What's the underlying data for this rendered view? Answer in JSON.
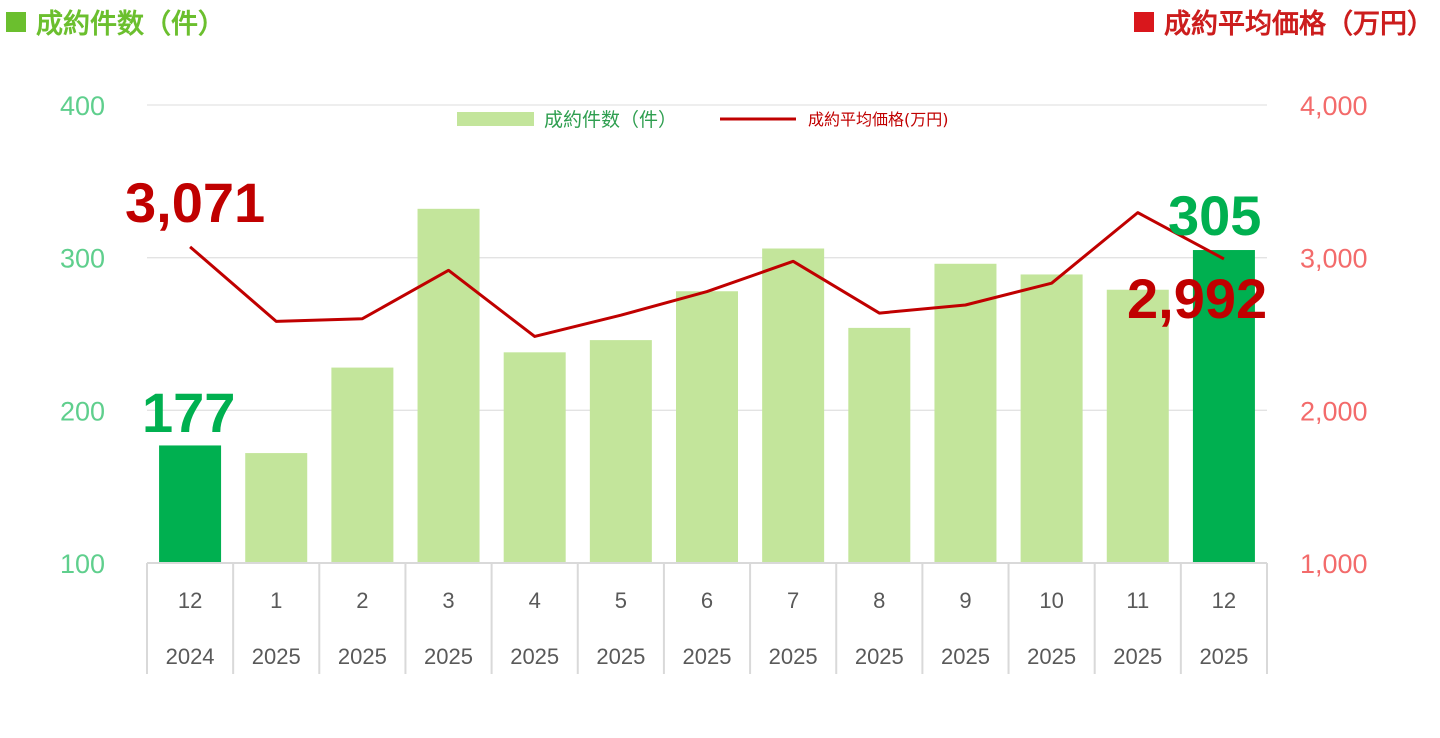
{
  "header": {
    "left_title": "成約件数（件）",
    "right_title": "成約平均価格（万円）"
  },
  "colors": {
    "bar": "#c3e59b",
    "bar_highlight": "#00b050",
    "line": "#c00000",
    "left_axis": "#5fcf8d",
    "right_axis": "#f36b6b"
  },
  "chart_data": {
    "type": "bar",
    "categories": [
      {
        "month": "12",
        "year": "2024"
      },
      {
        "month": "1",
        "year": "2025"
      },
      {
        "month": "2",
        "year": "2025"
      },
      {
        "month": "3",
        "year": "2025"
      },
      {
        "month": "4",
        "year": "2025"
      },
      {
        "month": "5",
        "year": "2025"
      },
      {
        "month": "6",
        "year": "2025"
      },
      {
        "month": "7",
        "year": "2025"
      },
      {
        "month": "8",
        "year": "2025"
      },
      {
        "month": "9",
        "year": "2025"
      },
      {
        "month": "10",
        "year": "2025"
      },
      {
        "month": "11",
        "year": "2025"
      },
      {
        "month": "12",
        "year": "2025"
      }
    ],
    "series": [
      {
        "name": "成約件数（件）",
        "type": "bar",
        "axis": "left",
        "values": [
          177,
          172,
          228,
          332,
          238,
          246,
          278,
          306,
          254,
          296,
          289,
          279,
          305
        ],
        "highlight": [
          0,
          12
        ]
      },
      {
        "name": "成約平均価格(万円)",
        "type": "line",
        "axis": "right",
        "values": [
          3071,
          2583,
          2600,
          2917,
          2484,
          2623,
          2778,
          2976,
          2637,
          2690,
          2833,
          3295,
          2992
        ]
      }
    ],
    "left_axis": {
      "min": 100,
      "max": 400,
      "ticks": [
        "100",
        "200",
        "300",
        "400"
      ]
    },
    "right_axis": {
      "min": 1000,
      "max": 4000,
      "ticks": [
        "1,000",
        "2,000",
        "3,000",
        "4,000"
      ]
    },
    "data_labels": {
      "first_count": "177",
      "last_count": "305",
      "first_price": "3,071",
      "last_price": "2,992"
    },
    "grid": "horizontal",
    "legend_position": "top-center"
  }
}
